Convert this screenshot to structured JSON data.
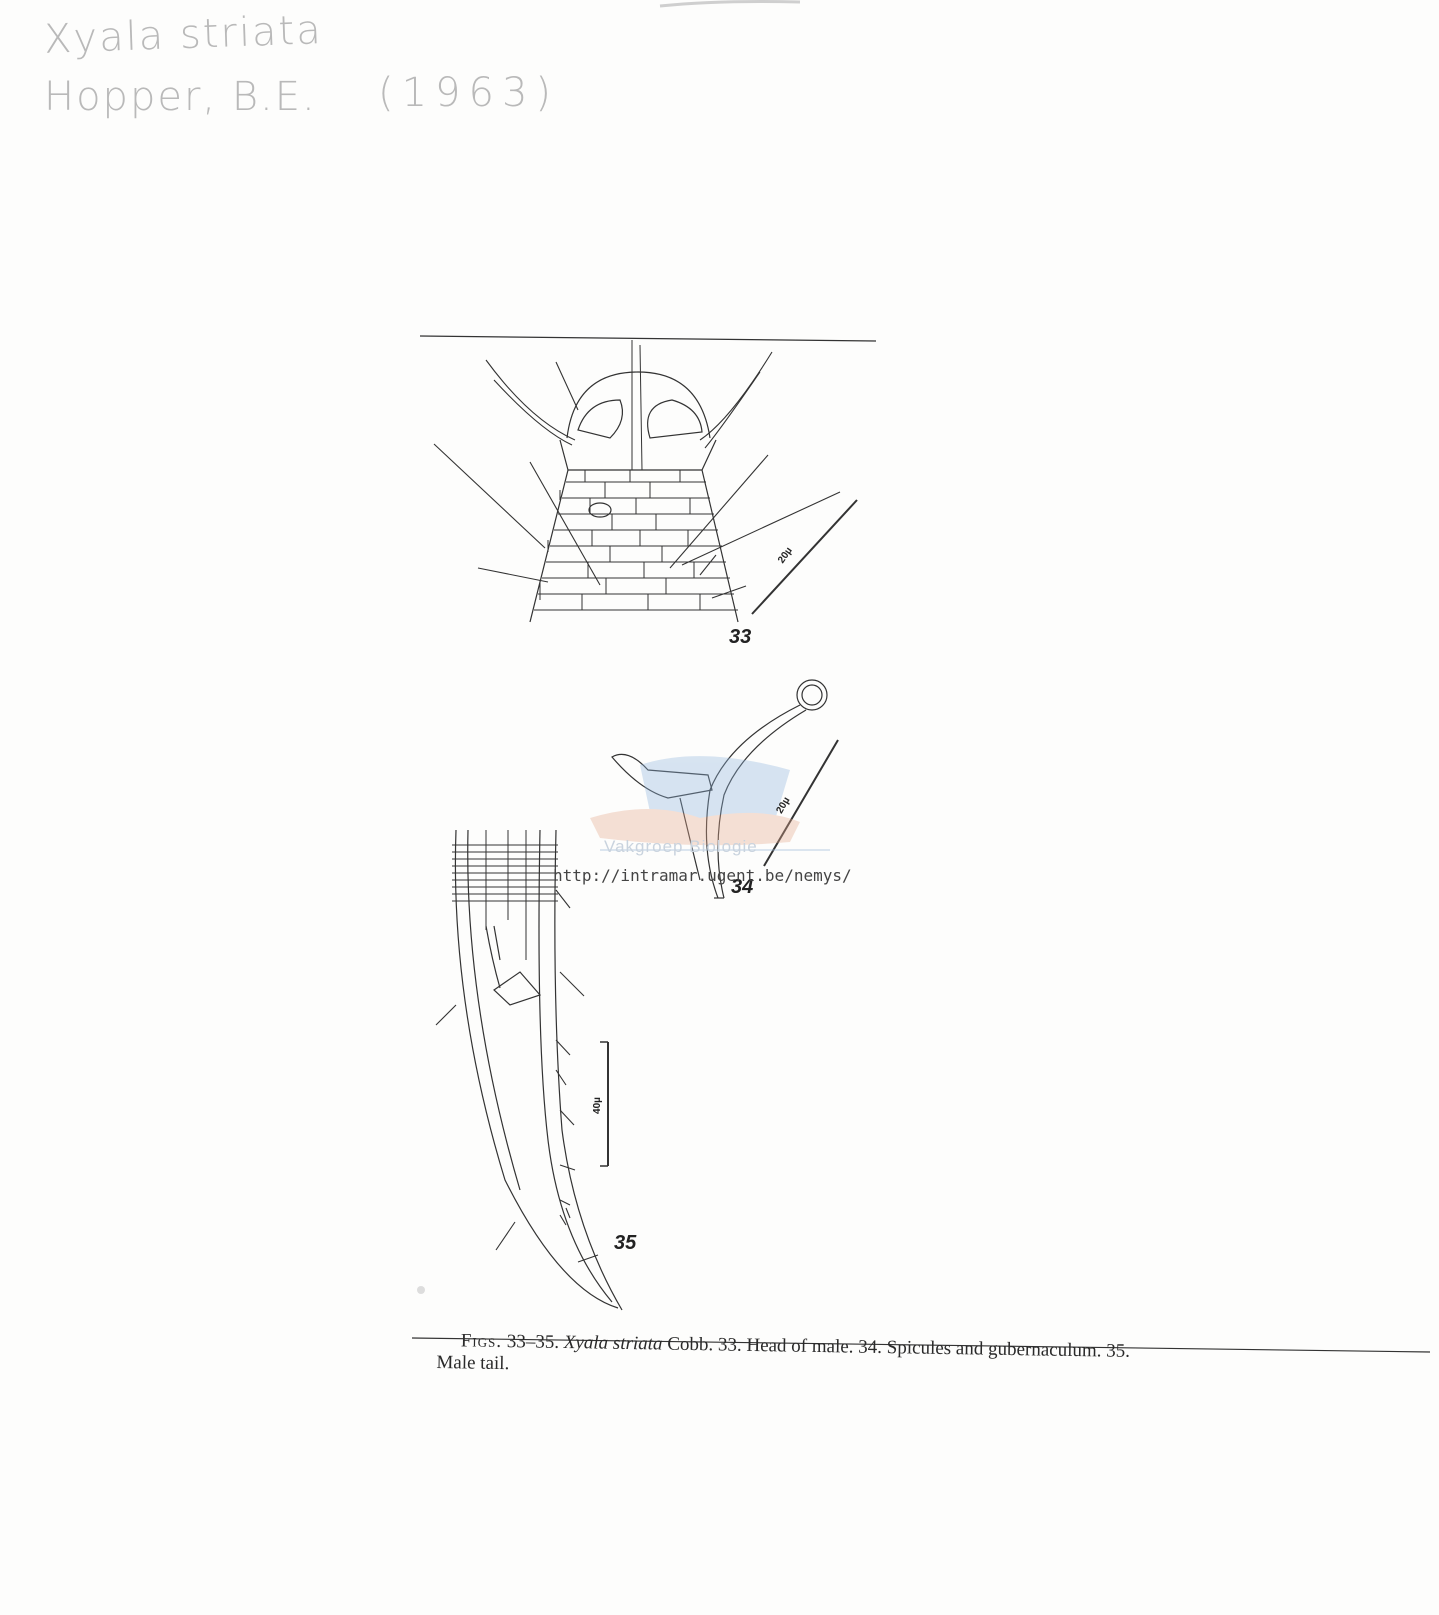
{
  "annotation": {
    "species": "Xyala striata",
    "author": "Hopper, B.E.",
    "year": "(1963)"
  },
  "figures": {
    "fig33": {
      "label": "33",
      "scale": "20µ"
    },
    "fig34": {
      "label": "34",
      "scale": "20µ"
    },
    "fig35": {
      "label": "35",
      "scale": "40µ"
    }
  },
  "watermark": {
    "org": "Vakgroep Biologie",
    "url": "http://intramar.ugent.be/nemys/"
  },
  "caption": {
    "prefix": "Figs.",
    "range": " 33–35. ",
    "species": "Xyala striata",
    "rest_line1": " Cobb. 33. Head of male. 34. Spicules and gubernaculum. 35.",
    "line2": "Male tail."
  }
}
